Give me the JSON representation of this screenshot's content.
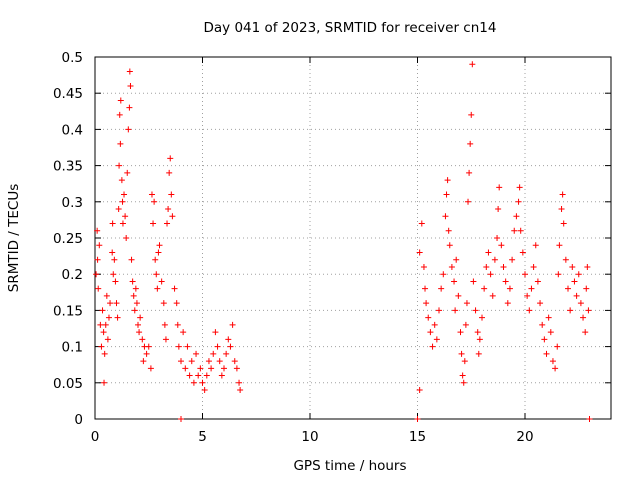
{
  "chart_data": {
    "type": "scatter",
    "title": "Day 041 of 2023, SRMTID for receiver cn14",
    "xlabel": "GPS time / hours",
    "ylabel": "SRMTID / TECUs",
    "xlim": [
      0,
      24
    ],
    "ylim": [
      0,
      0.5
    ],
    "xticks": [
      0,
      5,
      10,
      15,
      20
    ],
    "yticks": [
      0,
      0.05,
      0.1,
      0.15,
      0.2,
      0.25,
      0.3,
      0.35,
      0.4,
      0.45,
      0.5
    ],
    "grid": true,
    "marker": "+",
    "color": "#ff0000",
    "series": [
      {
        "name": "SRMTID",
        "points": [
          [
            0.05,
            0.2
          ],
          [
            0.1,
            0.26
          ],
          [
            0.12,
            0.22
          ],
          [
            0.15,
            0.18
          ],
          [
            0.2,
            0.24
          ],
          [
            0.25,
            0.13
          ],
          [
            0.3,
            0.1
          ],
          [
            0.35,
            0.15
          ],
          [
            0.4,
            0.12
          ],
          [
            0.42,
            0.05
          ],
          [
            0.45,
            0.09
          ],
          [
            0.5,
            0.13
          ],
          [
            0.55,
            0.17
          ],
          [
            0.6,
            0.11
          ],
          [
            0.65,
            0.14
          ],
          [
            0.7,
            0.16
          ],
          [
            0.8,
            0.23
          ],
          [
            0.82,
            0.27
          ],
          [
            0.85,
            0.2
          ],
          [
            0.9,
            0.22
          ],
          [
            0.95,
            0.19
          ],
          [
            1.0,
            0.16
          ],
          [
            1.05,
            0.14
          ],
          [
            1.1,
            0.29
          ],
          [
            1.12,
            0.35
          ],
          [
            1.15,
            0.42
          ],
          [
            1.18,
            0.38
          ],
          [
            1.2,
            0.44
          ],
          [
            1.25,
            0.33
          ],
          [
            1.28,
            0.3
          ],
          [
            1.3,
            0.27
          ],
          [
            1.35,
            0.31
          ],
          [
            1.4,
            0.28
          ],
          [
            1.45,
            0.25
          ],
          [
            1.5,
            0.34
          ],
          [
            1.55,
            0.4
          ],
          [
            1.6,
            0.43
          ],
          [
            1.62,
            0.48
          ],
          [
            1.65,
            0.46
          ],
          [
            1.7,
            0.22
          ],
          [
            1.75,
            0.19
          ],
          [
            1.8,
            0.17
          ],
          [
            1.85,
            0.15
          ],
          [
            1.9,
            0.18
          ],
          [
            1.95,
            0.16
          ],
          [
            2.0,
            0.13
          ],
          [
            2.05,
            0.12
          ],
          [
            2.1,
            0.14
          ],
          [
            2.2,
            0.11
          ],
          [
            2.25,
            0.08
          ],
          [
            2.3,
            0.1
          ],
          [
            2.4,
            0.09
          ],
          [
            2.5,
            0.1
          ],
          [
            2.6,
            0.07
          ],
          [
            2.65,
            0.31
          ],
          [
            2.7,
            0.27
          ],
          [
            2.75,
            0.3
          ],
          [
            2.8,
            0.22
          ],
          [
            2.85,
            0.2
          ],
          [
            2.9,
            0.18
          ],
          [
            2.95,
            0.23
          ],
          [
            3.0,
            0.24
          ],
          [
            3.1,
            0.19
          ],
          [
            3.2,
            0.16
          ],
          [
            3.25,
            0.13
          ],
          [
            3.3,
            0.11
          ],
          [
            3.35,
            0.27
          ],
          [
            3.4,
            0.29
          ],
          [
            3.45,
            0.34
          ],
          [
            3.5,
            0.36
          ],
          [
            3.55,
            0.31
          ],
          [
            3.6,
            0.28
          ],
          [
            3.7,
            0.18
          ],
          [
            3.8,
            0.16
          ],
          [
            3.85,
            0.13
          ],
          [
            3.9,
            0.1
          ],
          [
            4.0,
            0.08
          ],
          [
            4.1,
            0.12
          ],
          [
            4.2,
            0.07
          ],
          [
            4.3,
            0.1
          ],
          [
            4.4,
            0.06
          ],
          [
            4.5,
            0.08
          ],
          [
            4.6,
            0.05
          ],
          [
            4.7,
            0.09
          ],
          [
            4.8,
            0.06
          ],
          [
            4.9,
            0.07
          ],
          [
            5.0,
            0.05
          ],
          [
            5.1,
            0.04
          ],
          [
            5.2,
            0.06
          ],
          [
            5.3,
            0.08
          ],
          [
            5.4,
            0.07
          ],
          [
            5.5,
            0.09
          ],
          [
            5.6,
            0.12
          ],
          [
            5.7,
            0.1
          ],
          [
            5.8,
            0.08
          ],
          [
            5.9,
            0.06
          ],
          [
            6.0,
            0.07
          ],
          [
            6.1,
            0.09
          ],
          [
            6.2,
            0.11
          ],
          [
            6.3,
            0.1
          ],
          [
            6.4,
            0.13
          ],
          [
            6.5,
            0.08
          ],
          [
            6.6,
            0.07
          ],
          [
            6.7,
            0.05
          ],
          [
            6.75,
            0.04
          ],
          [
            4.0,
            0.0
          ],
          [
            15.0,
            0.0
          ],
          [
            15.1,
            0.04
          ],
          [
            23.0,
            0.0
          ],
          [
            15.1,
            0.23
          ],
          [
            15.2,
            0.27
          ],
          [
            15.3,
            0.21
          ],
          [
            15.35,
            0.18
          ],
          [
            15.4,
            0.16
          ],
          [
            15.5,
            0.14
          ],
          [
            15.6,
            0.12
          ],
          [
            15.7,
            0.1
          ],
          [
            15.8,
            0.13
          ],
          [
            15.9,
            0.11
          ],
          [
            16.0,
            0.15
          ],
          [
            16.1,
            0.18
          ],
          [
            16.2,
            0.2
          ],
          [
            16.3,
            0.28
          ],
          [
            16.35,
            0.31
          ],
          [
            16.4,
            0.33
          ],
          [
            16.45,
            0.26
          ],
          [
            16.5,
            0.24
          ],
          [
            16.6,
            0.21
          ],
          [
            16.7,
            0.19
          ],
          [
            16.75,
            0.15
          ],
          [
            16.8,
            0.22
          ],
          [
            16.9,
            0.17
          ],
          [
            17.0,
            0.12
          ],
          [
            17.05,
            0.09
          ],
          [
            17.1,
            0.06
          ],
          [
            17.15,
            0.05
          ],
          [
            17.2,
            0.08
          ],
          [
            17.25,
            0.13
          ],
          [
            17.3,
            0.16
          ],
          [
            17.35,
            0.3
          ],
          [
            17.4,
            0.34
          ],
          [
            17.45,
            0.38
          ],
          [
            17.5,
            0.42
          ],
          [
            17.55,
            0.49
          ],
          [
            17.6,
            0.19
          ],
          [
            17.7,
            0.15
          ],
          [
            17.8,
            0.12
          ],
          [
            17.85,
            0.09
          ],
          [
            17.9,
            0.11
          ],
          [
            18.0,
            0.14
          ],
          [
            18.1,
            0.18
          ],
          [
            18.2,
            0.21
          ],
          [
            18.3,
            0.23
          ],
          [
            18.4,
            0.2
          ],
          [
            18.5,
            0.17
          ],
          [
            18.6,
            0.22
          ],
          [
            18.7,
            0.25
          ],
          [
            18.75,
            0.29
          ],
          [
            18.8,
            0.32
          ],
          [
            18.9,
            0.24
          ],
          [
            19.0,
            0.21
          ],
          [
            19.1,
            0.19
          ],
          [
            19.2,
            0.16
          ],
          [
            19.3,
            0.18
          ],
          [
            19.4,
            0.22
          ],
          [
            19.5,
            0.26
          ],
          [
            19.6,
            0.28
          ],
          [
            19.7,
            0.3
          ],
          [
            19.75,
            0.32
          ],
          [
            19.8,
            0.26
          ],
          [
            19.9,
            0.23
          ],
          [
            20.0,
            0.2
          ],
          [
            20.1,
            0.17
          ],
          [
            20.2,
            0.15
          ],
          [
            20.3,
            0.18
          ],
          [
            20.4,
            0.21
          ],
          [
            20.5,
            0.24
          ],
          [
            20.6,
            0.19
          ],
          [
            20.7,
            0.16
          ],
          [
            20.8,
            0.13
          ],
          [
            20.9,
            0.11
          ],
          [
            21.0,
            0.09
          ],
          [
            21.1,
            0.14
          ],
          [
            21.2,
            0.12
          ],
          [
            21.3,
            0.08
          ],
          [
            21.4,
            0.07
          ],
          [
            21.5,
            0.1
          ],
          [
            21.55,
            0.2
          ],
          [
            21.6,
            0.24
          ],
          [
            21.7,
            0.29
          ],
          [
            21.75,
            0.31
          ],
          [
            21.8,
            0.27
          ],
          [
            21.9,
            0.22
          ],
          [
            22.0,
            0.18
          ],
          [
            22.1,
            0.15
          ],
          [
            22.2,
            0.21
          ],
          [
            22.3,
            0.19
          ],
          [
            22.4,
            0.17
          ],
          [
            22.5,
            0.2
          ],
          [
            22.6,
            0.16
          ],
          [
            22.7,
            0.14
          ],
          [
            22.8,
            0.12
          ],
          [
            22.85,
            0.18
          ],
          [
            22.9,
            0.21
          ],
          [
            22.95,
            0.15
          ]
        ]
      }
    ]
  }
}
